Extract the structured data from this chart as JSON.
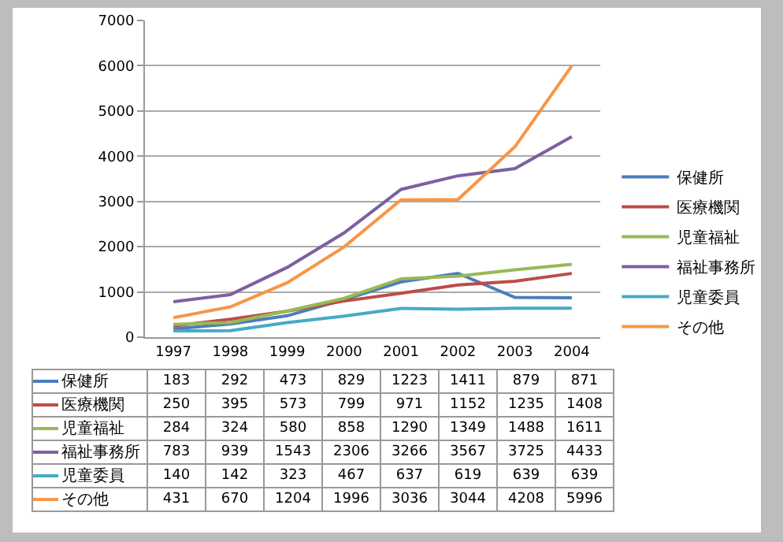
{
  "chart_data": {
    "type": "line",
    "categories": [
      "1997",
      "1998",
      "1999",
      "2000",
      "2001",
      "2002",
      "2003",
      "2004"
    ],
    "series": [
      {
        "name": "保健所",
        "color": "#4a7ebb",
        "values": [
          183,
          292,
          473,
          829,
          1223,
          1411,
          879,
          871
        ]
      },
      {
        "name": "医療機関",
        "color": "#be4b48",
        "values": [
          250,
          395,
          573,
          799,
          971,
          1152,
          1235,
          1408
        ]
      },
      {
        "name": "児童福祉",
        "color": "#98b954",
        "values": [
          284,
          324,
          580,
          858,
          1290,
          1349,
          1488,
          1611
        ]
      },
      {
        "name": "福祉事務所",
        "color": "#7d60a0",
        "values": [
          783,
          939,
          1543,
          2306,
          3266,
          3567,
          3725,
          4433
        ]
      },
      {
        "name": "児童委員",
        "color": "#46aac5",
        "values": [
          140,
          142,
          323,
          467,
          637,
          619,
          639,
          639
        ]
      },
      {
        "name": "その他",
        "color": "#f79646",
        "values": [
          431,
          670,
          1204,
          1996,
          3036,
          3044,
          4208,
          5996
        ]
      }
    ],
    "ylim": [
      0,
      7000
    ],
    "yticks": [
      0,
      1000,
      2000,
      3000,
      4000,
      5000,
      6000,
      7000
    ],
    "grid": "y",
    "legend": "right",
    "marker": "none",
    "line_style": "solid",
    "data_labels": true
  }
}
